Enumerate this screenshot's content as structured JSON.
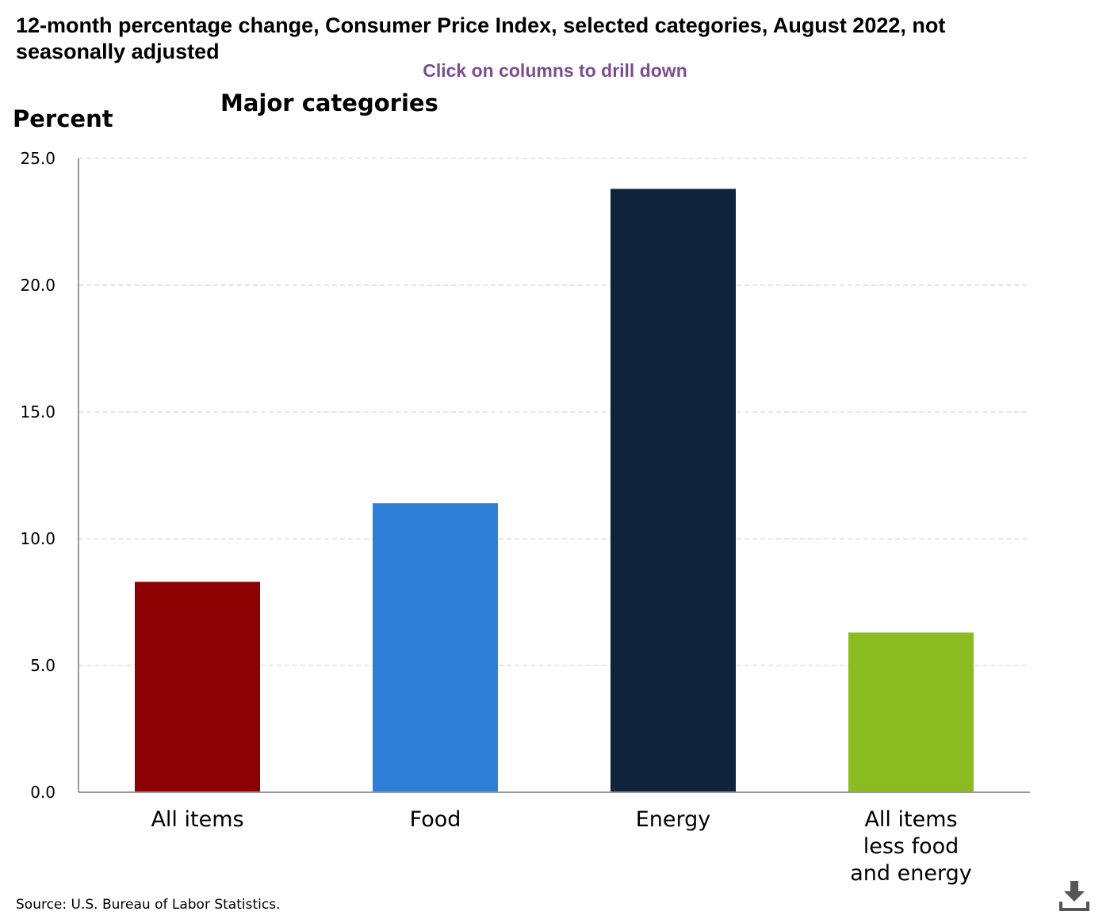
{
  "header": {
    "title": "12-month percentage change, Consumer Price Index, selected categories, August 2022, not seasonally adjusted",
    "hint": "Click on columns to drill down"
  },
  "footer": {
    "source": "Source: U.S. Bureau of Labor Statistics.",
    "download_icon": "download-icon"
  },
  "chart_data": {
    "type": "bar",
    "title": "Major categories",
    "ylabel": "Percent",
    "xlabel": "",
    "categories": [
      [
        "All items"
      ],
      [
        "Food"
      ],
      [
        "Energy"
      ],
      [
        "All items",
        "less food",
        "and energy"
      ]
    ],
    "values": [
      8.3,
      11.4,
      23.8,
      6.3
    ],
    "colors": [
      "#8b0000",
      "#2f7ed8",
      "#0f233b",
      "#8bbc21"
    ],
    "ylim": [
      0,
      25
    ],
    "yticks": [
      "0.0",
      "5.0",
      "10.0",
      "15.0",
      "20.0",
      "25.0"
    ],
    "grid": true,
    "legend": "none"
  }
}
